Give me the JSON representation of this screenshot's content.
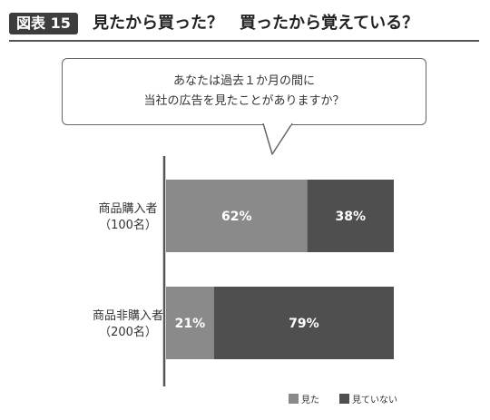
{
  "figure": {
    "badge": "図表 15",
    "title": "見たから買った？　買ったから覚えている？"
  },
  "question": {
    "line1": "あなたは過去１か月の間に",
    "line2": "当社の広告を見たことがありますか？"
  },
  "colors": {
    "seen": "#8a8a8a",
    "not_seen": "#4f4f4f",
    "axis": "#555555"
  },
  "chart_data": {
    "type": "bar",
    "orientation": "horizontal",
    "stacked": true,
    "percent": true,
    "categories": [
      {
        "line1": "商品購入者",
        "line2": "（100名）"
      },
      {
        "line1": "商品非購入者",
        "line2": "（200名）"
      }
    ],
    "series": [
      {
        "name": "見た",
        "values": [
          62,
          21
        ],
        "labels": [
          "62%",
          "21%"
        ]
      },
      {
        "name": "見ていない",
        "values": [
          38,
          79
        ],
        "labels": [
          "38%",
          "79%"
        ]
      }
    ],
    "xlim": [
      0,
      100
    ],
    "grid": false,
    "legend": "bottom-right"
  }
}
